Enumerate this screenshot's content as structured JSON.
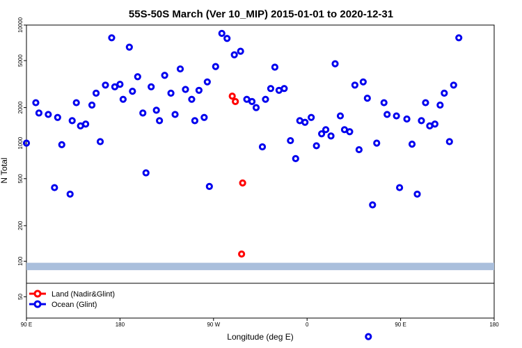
{
  "chart_data": {
    "type": "scatter",
    "title": "55S-50S March (Ver 10_MIP)   2015-01-01 to 2020-12-31",
    "xlabel": "Longitude (deg E)",
    "ylabel": "N Total",
    "x_scale": "longitude, 90E to 180 wrapping through 0 to 90E to 180 (540 deg span)",
    "y_scale": "log",
    "ylim": [
      33,
      10000
    ],
    "x_ticks": [
      {
        "lon_e": 90,
        "label": "90 E"
      },
      {
        "lon_e": 180,
        "label": "180"
      },
      {
        "lon_e": 270,
        "label": "90 W"
      },
      {
        "lon_e": 360,
        "label": "0"
      },
      {
        "lon_e": 450,
        "label": "90 E"
      },
      {
        "lon_e": 540,
        "label": "180"
      }
    ],
    "y_ticks": [
      {
        "value": 50,
        "label": "50"
      },
      {
        "value": 100,
        "label": "100"
      },
      {
        "value": 200,
        "label": "200"
      },
      {
        "value": 500,
        "label": "500"
      },
      {
        "value": 1000,
        "label": "1000"
      },
      {
        "value": 2000,
        "label": "2000"
      },
      {
        "value": 5000,
        "label": "5000"
      },
      {
        "value": 10000,
        "label": "10000"
      }
    ],
    "reference_band": {
      "ymin": 84,
      "ymax": 97,
      "color": "#aabfdc"
    },
    "separator_y": 50,
    "legend": "bottom-left",
    "series": [
      {
        "name": "Land (Nadir&Glint)",
        "color": "#ff0000",
        "points": [
          [
            288,
            2500
          ],
          [
            291,
            2250
          ],
          [
            298,
            460
          ],
          [
            297,
            115
          ]
        ]
      },
      {
        "name": "Ocean (Glint)",
        "color": "#0000ee",
        "points": [
          [
            90,
            1000
          ],
          [
            99,
            2200
          ],
          [
            102,
            1800
          ],
          [
            111,
            1750
          ],
          [
            117,
            420
          ],
          [
            120,
            1650
          ],
          [
            124,
            970
          ],
          [
            132,
            370
          ],
          [
            134,
            1550
          ],
          [
            138,
            2200
          ],
          [
            142,
            1400
          ],
          [
            147,
            1450
          ],
          [
            153,
            2100
          ],
          [
            157,
            2650
          ],
          [
            161,
            1030
          ],
          [
            166,
            3100
          ],
          [
            172,
            7800
          ],
          [
            175,
            3000
          ],
          [
            180,
            3150
          ],
          [
            183,
            2350
          ],
          [
            189,
            6500
          ],
          [
            192,
            2750
          ],
          [
            197,
            3650
          ],
          [
            202,
            1800
          ],
          [
            205,
            560
          ],
          [
            210,
            3000
          ],
          [
            215,
            1900
          ],
          [
            218,
            1550
          ],
          [
            223,
            3750
          ],
          [
            229,
            2650
          ],
          [
            233,
            1750
          ],
          [
            238,
            4250
          ],
          [
            243,
            2850
          ],
          [
            249,
            2350
          ],
          [
            252,
            1550
          ],
          [
            256,
            2800
          ],
          [
            261,
            1650
          ],
          [
            264,
            3300
          ],
          [
            266,
            430
          ],
          [
            272,
            4450
          ],
          [
            278,
            8500
          ],
          [
            283,
            7700
          ],
          [
            290,
            5600
          ],
          [
            296,
            6000
          ],
          [
            302,
            2350
          ],
          [
            307,
            2250
          ],
          [
            311,
            2000
          ],
          [
            317,
            930
          ],
          [
            320,
            2350
          ],
          [
            325,
            2900
          ],
          [
            329,
            4400
          ],
          [
            333,
            2800
          ],
          [
            338,
            2900
          ],
          [
            344,
            1050
          ],
          [
            349,
            740
          ],
          [
            353,
            1550
          ],
          [
            358,
            1500
          ],
          [
            364,
            1650
          ],
          [
            369,
            950
          ],
          [
            374,
            1200
          ],
          [
            378,
            1300
          ],
          [
            383,
            1150
          ],
          [
            387,
            4700
          ],
          [
            392,
            1700
          ],
          [
            396,
            1300
          ],
          [
            401,
            1250
          ],
          [
            406,
            3100
          ],
          [
            410,
            880
          ],
          [
            414,
            3300
          ],
          [
            418,
            2400
          ],
          [
            423,
            300
          ],
          [
            427,
            1000
          ],
          [
            434,
            2200
          ],
          [
            437,
            1750
          ],
          [
            446,
            1700
          ],
          [
            449,
            420
          ],
          [
            456,
            1600
          ],
          [
            461,
            980
          ],
          [
            466,
            370
          ],
          [
            470,
            1550
          ],
          [
            474,
            2200
          ],
          [
            478,
            1400
          ],
          [
            483,
            1450
          ],
          [
            488,
            2100
          ],
          [
            492,
            2650
          ],
          [
            497,
            1030
          ],
          [
            501,
            3100
          ],
          [
            506,
            7800
          ]
        ],
        "below_axis": [
          [
            419,
            23
          ]
        ]
      }
    ]
  }
}
